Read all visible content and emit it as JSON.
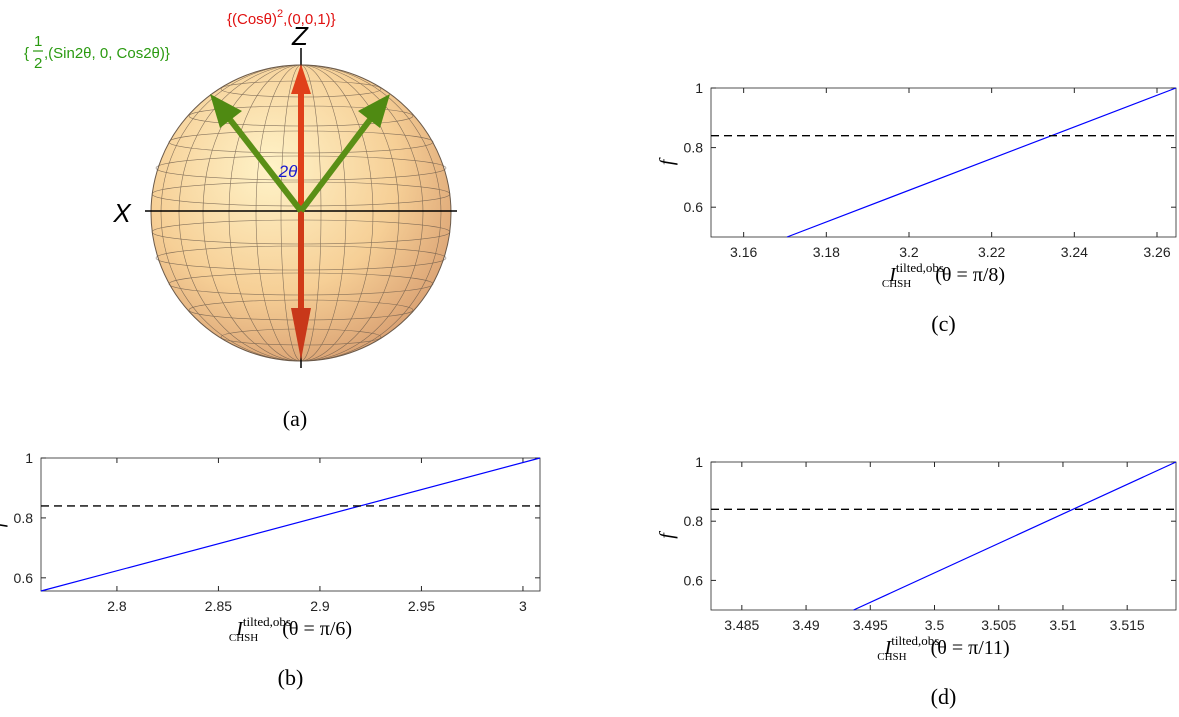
{
  "diagram": {
    "z_label": "Z",
    "x_label": "X",
    "angle_label": "2θ",
    "red_label": {
      "open": "{(Cosθ)",
      "sup": "2",
      "close": ",(0,0,1)}"
    },
    "green_label": {
      "open": "{",
      "num": "1",
      "den": "2",
      "close": ",(Sin2θ, 0, Cos2θ)}"
    },
    "caption": "(a)"
  },
  "chart_data": [
    {
      "type": "line",
      "caption": "(b)",
      "y_label": "f",
      "x_label": {
        "base": "I",
        "sub": "CHSH",
        "sup": "tilted,obs",
        "arg": "(θ = π/6)"
      },
      "xlim": [
        2.7626,
        3.0084
      ],
      "xticks": [
        2.8,
        2.85,
        2.9,
        2.95,
        3
      ],
      "ylim": [
        0.556,
        1
      ],
      "yticks": [
        0.6,
        0.8,
        1
      ],
      "series": [
        {
          "color": "#0000ff",
          "dash": false,
          "x": [
            2.7626,
            3.0084
          ],
          "values": [
            0.556,
            1
          ]
        },
        {
          "color": "#000000",
          "dash": true,
          "x": [
            2.7626,
            3.0084
          ],
          "values": [
            0.84,
            0.84
          ]
        }
      ]
    },
    {
      "type": "line",
      "caption": "(c)",
      "y_label": "f",
      "x_label": {
        "base": "I",
        "sub": "CHSH",
        "sup": "tilted,obs",
        "arg": "(θ = π/8)"
      },
      "xlim": [
        3.1521,
        3.2646
      ],
      "xticks": [
        3.16,
        3.18,
        3.2,
        3.22,
        3.24,
        3.26
      ],
      "ylim": [
        0.5,
        1
      ],
      "yticks": [
        0.6,
        0.8,
        1
      ],
      "series": [
        {
          "color": "#0000ff",
          "dash": false,
          "x": [
            3.1705,
            3.2646
          ],
          "values": [
            0.5,
            1
          ]
        },
        {
          "color": "#000000",
          "dash": true,
          "x": [
            3.1521,
            3.2646
          ],
          "values": [
            0.84,
            0.84
          ]
        }
      ]
    },
    {
      "type": "line",
      "caption": "(d)",
      "y_label": "f",
      "x_label": {
        "base": "I",
        "sub": "CHSH",
        "sup": "tilted,obs",
        "arg": "(θ = π/11)"
      },
      "xlim": [
        3.4826,
        3.5188
      ],
      "xticks": [
        3.485,
        3.49,
        3.495,
        3.5,
        3.505,
        3.51,
        3.515
      ],
      "ylim": [
        0.5,
        1
      ],
      "yticks": [
        0.6,
        0.8,
        1
      ],
      "series": [
        {
          "color": "#0000ff",
          "dash": false,
          "x": [
            3.4937,
            3.5188
          ],
          "values": [
            0.5,
            1
          ]
        },
        {
          "color": "#000000",
          "dash": true,
          "x": [
            3.4826,
            3.5188
          ],
          "values": [
            0.84,
            0.84
          ]
        }
      ]
    }
  ]
}
